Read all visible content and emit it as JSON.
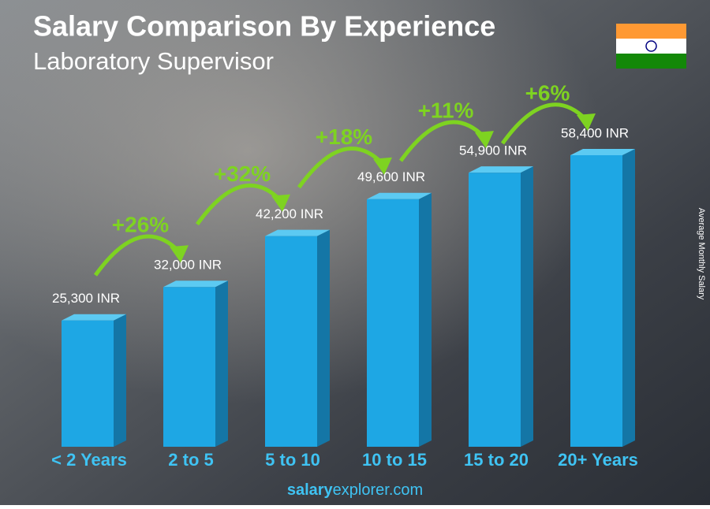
{
  "chart_data": {
    "type": "bar",
    "title": "Salary Comparison By Experience",
    "subtitle": "Laboratory Supervisor",
    "y_axis_label": "Average Monthly Salary",
    "categories": [
      "< 2 Years",
      "2 to 5",
      "5 to 10",
      "10 to 15",
      "15 to 20",
      "20+ Years"
    ],
    "values": [
      25300,
      32000,
      42200,
      49600,
      54900,
      58400
    ],
    "value_labels": [
      "25,300 INR",
      "32,000 INR",
      "42,200 INR",
      "49,600 INR",
      "54,900 INR",
      "58,400 INR"
    ],
    "color": "#1ea7e4",
    "changes": [
      "+26%",
      "+32%",
      "+18%",
      "+11%",
      "+6%"
    ],
    "change_color": "#7ed321"
  },
  "footer": {
    "brand": "salary",
    "domain": "explorer.com"
  }
}
